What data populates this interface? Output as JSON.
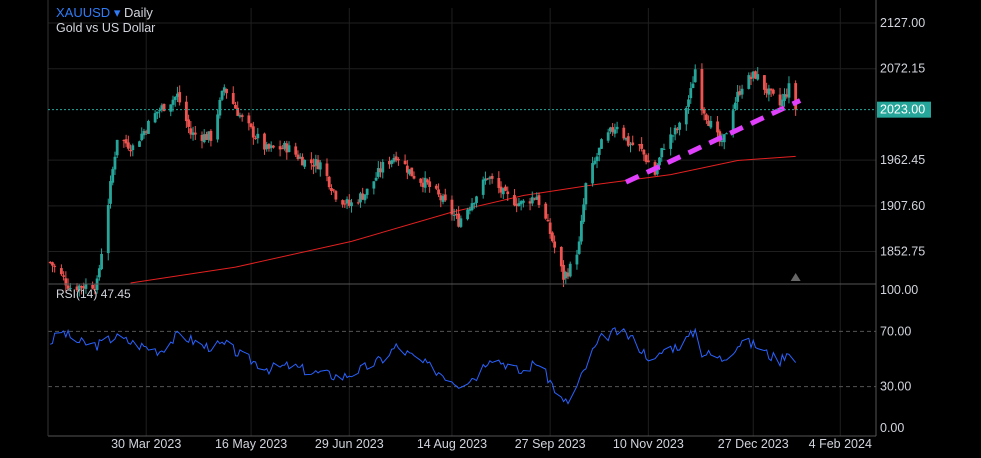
{
  "header": {
    "symbol": "XAUUSD",
    "symbol_caret": "▾",
    "timeframe": "Daily",
    "description": "Gold vs US Dollar"
  },
  "rsi": {
    "label": "RSI(14)",
    "value": "47.45"
  },
  "colors": {
    "up": "#26a69a",
    "down": "#ef5350",
    "ma": "#e32020",
    "rsi": "#2962ff",
    "trendline": "#e040fb",
    "price_tag": "#26a69a",
    "grid": "#1f1f1f",
    "background": "#000000"
  },
  "chart_data": [
    {
      "type": "candlestick",
      "title": "XAUUSD Daily",
      "subtitle": "Gold vs US Dollar",
      "ylim": [
        1815,
        2145
      ],
      "y_ticks": [
        "2127.00",
        "2072.15",
        "1962.45",
        "1907.60",
        "1852.75"
      ],
      "x_ticks": [
        "30 Mar 2023",
        "16 May 2023",
        "29 Jun 2023",
        "14 Aug 2023",
        "27 Sep 2023",
        "10 Nov 2023",
        "27 Dec 2023",
        "4 Feb 2024"
      ],
      "x_range": [
        "2023-02-14",
        "2024-02-20"
      ],
      "last_price": "2023.00",
      "keypoints_close": [
        [
          "2023-02-15",
          1840
        ],
        [
          "2023-02-24",
          1810
        ],
        [
          "2023-03-08",
          1814
        ],
        [
          "2023-03-17",
          1990
        ],
        [
          "2023-03-24",
          1978
        ],
        [
          "2023-04-04",
          2021
        ],
        [
          "2023-04-13",
          2040
        ],
        [
          "2023-04-19",
          1994
        ],
        [
          "2023-04-28",
          1990
        ],
        [
          "2023-05-04",
          2050
        ],
        [
          "2023-05-12",
          2011
        ],
        [
          "2023-05-23",
          1975
        ],
        [
          "2023-06-01",
          1978
        ],
        [
          "2023-06-09",
          1961
        ],
        [
          "2023-06-16",
          1958
        ],
        [
          "2023-06-23",
          1921
        ],
        [
          "2023-06-29",
          1908
        ],
        [
          "2023-07-07",
          1925
        ],
        [
          "2023-07-14",
          1955
        ],
        [
          "2023-07-20",
          1969
        ],
        [
          "2023-07-27",
          1946
        ],
        [
          "2023-08-03",
          1933
        ],
        [
          "2023-08-10",
          1913
        ],
        [
          "2023-08-17",
          1889
        ],
        [
          "2023-08-24",
          1917
        ],
        [
          "2023-08-30",
          1943
        ],
        [
          "2023-09-07",
          1919
        ],
        [
          "2023-09-14",
          1910
        ],
        [
          "2023-09-21",
          1920
        ],
        [
          "2023-09-27",
          1875
        ],
        [
          "2023-10-03",
          1822
        ],
        [
          "2023-10-06",
          1833
        ],
        [
          "2023-10-10",
          1861
        ],
        [
          "2023-10-13",
          1932
        ],
        [
          "2023-10-20",
          1981
        ],
        [
          "2023-10-27",
          2006
        ],
        [
          "2023-11-01",
          1983
        ],
        [
          "2023-11-06",
          1978
        ],
        [
          "2023-11-13",
          1946
        ],
        [
          "2023-11-17",
          1981
        ],
        [
          "2023-11-24",
          2002
        ],
        [
          "2023-11-29",
          2044
        ],
        [
          "2023-12-01",
          2072
        ],
        [
          "2023-12-04",
          2029
        ],
        [
          "2023-12-08",
          2004
        ],
        [
          "2023-12-13",
          1979
        ],
        [
          "2023-12-18",
          2027
        ],
        [
          "2023-12-22",
          2053
        ],
        [
          "2023-12-28",
          2065
        ],
        [
          "2024-01-03",
          2042
        ],
        [
          "2024-01-08",
          2028
        ],
        [
          "2024-01-12",
          2049
        ],
        [
          "2024-01-15",
          2023
        ]
      ],
      "moving_average": [
        [
          "2023-03-23",
          1815
        ],
        [
          "2023-05-09",
          1834
        ],
        [
          "2023-06-30",
          1865
        ],
        [
          "2023-08-14",
          1900
        ],
        [
          "2023-09-15",
          1920
        ],
        [
          "2023-10-17",
          1933
        ],
        [
          "2023-11-20",
          1945
        ],
        [
          "2023-12-20",
          1962
        ],
        [
          "2024-01-15",
          1967
        ]
      ],
      "trendline": [
        [
          "2023-10-31",
          1936
        ],
        [
          "2024-01-17",
          2034
        ]
      ],
      "last_price_line": 2023
    },
    {
      "type": "line",
      "title": "RSI(14)",
      "ylim": [
        0,
        100
      ],
      "y_ticks": [
        "100.00",
        "70.00",
        "30.00",
        "0.00"
      ],
      "levels": [
        70,
        30
      ],
      "current": 47.45,
      "keypoints": [
        [
          "2023-02-15",
          62
        ],
        [
          "2023-02-20",
          70
        ],
        [
          "2023-02-28",
          62
        ],
        [
          "2023-03-08",
          60
        ],
        [
          "2023-03-16",
          66
        ],
        [
          "2023-03-27",
          60
        ],
        [
          "2023-04-05",
          56
        ],
        [
          "2023-04-14",
          68
        ],
        [
          "2023-04-25",
          59
        ],
        [
          "2023-05-05",
          60
        ],
        [
          "2023-05-12",
          52
        ],
        [
          "2023-05-24",
          43
        ],
        [
          "2023-06-02",
          45
        ],
        [
          "2023-06-14",
          40
        ],
        [
          "2023-06-26",
          37
        ],
        [
          "2023-07-05",
          43
        ],
        [
          "2023-07-14",
          50
        ],
        [
          "2023-07-20",
          59
        ],
        [
          "2023-07-31",
          48
        ],
        [
          "2023-08-09",
          40
        ],
        [
          "2023-08-17",
          32
        ],
        [
          "2023-08-25",
          38
        ],
        [
          "2023-08-31",
          52
        ],
        [
          "2023-09-08",
          46
        ],
        [
          "2023-09-14",
          40
        ],
        [
          "2023-09-21",
          48
        ],
        [
          "2023-09-27",
          34
        ],
        [
          "2023-10-03",
          18
        ],
        [
          "2023-10-06",
          20
        ],
        [
          "2023-10-11",
          37
        ],
        [
          "2023-10-16",
          55
        ],
        [
          "2023-10-20",
          65
        ],
        [
          "2023-10-27",
          70
        ],
        [
          "2023-11-02",
          66
        ],
        [
          "2023-11-08",
          55
        ],
        [
          "2023-11-13",
          48
        ],
        [
          "2023-11-17",
          57
        ],
        [
          "2023-11-24",
          60
        ],
        [
          "2023-11-29",
          67
        ],
        [
          "2023-12-01",
          71
        ],
        [
          "2023-12-04",
          55
        ],
        [
          "2023-12-08",
          53
        ],
        [
          "2023-12-13",
          50
        ],
        [
          "2023-12-18",
          57
        ],
        [
          "2023-12-22",
          63
        ],
        [
          "2023-12-28",
          60
        ],
        [
          "2024-01-03",
          53
        ],
        [
          "2024-01-08",
          49
        ],
        [
          "2024-01-12",
          57
        ],
        [
          "2024-01-15",
          47.45
        ]
      ]
    }
  ]
}
